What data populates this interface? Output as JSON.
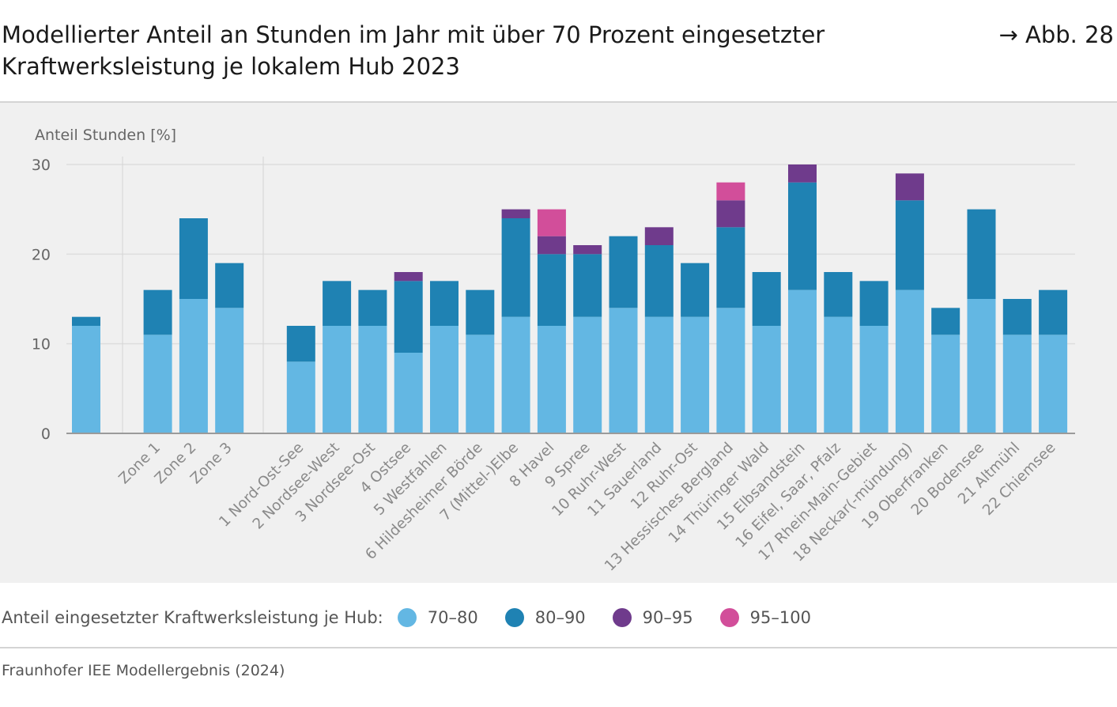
{
  "header": {
    "title": "Modellierter Anteil an Stunden im Jahr mit über 70 Prozent eingesetzter Kraftwerksleistung je lokalem Hub 2023",
    "figure_ref": "→ Abb. 28"
  },
  "legend": {
    "title": "Anteil eingesetzter Kraftwerksleistung je Hub:",
    "items": [
      {
        "label": "70–80",
        "color": "#63b7e3"
      },
      {
        "label": "80–90",
        "color": "#1f82b3"
      },
      {
        "label": "90–95",
        "color": "#6f3b8c"
      },
      {
        "label": "95–100",
        "color": "#d24e9a"
      }
    ]
  },
  "source": "Fraunhofer IEE Modellergebnis (2024)",
  "chart_data": {
    "type": "bar",
    "stacked": true,
    "title": "Modellierter Anteil an Stunden im Jahr mit über 70 Prozent eingesetzter Kraftwerksleistung je lokalem Hub 2023",
    "ylabel": "Anteil Stunden [%]",
    "xlabel": "",
    "ylim": [
      0,
      30
    ],
    "yticks": [
      0,
      10,
      20,
      30
    ],
    "grid": true,
    "categories": [
      "",
      "Zone 1",
      "Zone 2",
      "Zone 3",
      "1 Nord-Ost-See",
      "2 Nordsee-West",
      "3 Nordsee-Ost",
      "4 Ostsee",
      "5 Westfahlen",
      "6 Hildesheimer Börde",
      "7 (Mittel-)Elbe",
      "8 Havel",
      "9 Spree",
      "10 Ruhr-West",
      "11 Sauerland",
      "12 Ruhr-Ost",
      "13 Hessisches Bergland",
      "14 Thüringer Wald",
      "15 Elbsandstein",
      "16 Eifel, Saar, Pfalz",
      "17 Rhein-Main-Gebiet",
      "18 Neckar(-mündung)",
      "19 Oberfranken",
      "20 Bodensee",
      "21 Altmühl",
      "22 Chiemsee"
    ],
    "groups": [
      [
        0
      ],
      [
        1,
        2,
        3
      ],
      [
        4,
        5,
        6,
        7,
        8,
        9,
        10,
        11,
        12,
        13,
        14,
        15,
        16,
        17,
        18,
        19,
        20,
        21,
        22,
        23,
        24,
        25
      ]
    ],
    "series": [
      {
        "name": "70–80",
        "color": "#63b7e3",
        "values": [
          12,
          11,
          15,
          14,
          8,
          12,
          12,
          9,
          12,
          11,
          13,
          12,
          13,
          14,
          13,
          13,
          14,
          12,
          16,
          13,
          12,
          16,
          11,
          15,
          11,
          11
        ]
      },
      {
        "name": "80–90",
        "color": "#1f82b3",
        "values": [
          1,
          5,
          9,
          5,
          4,
          5,
          4,
          8,
          5,
          5,
          11,
          8,
          7,
          8,
          8,
          6,
          9,
          6,
          12,
          5,
          5,
          10,
          3,
          10,
          4,
          5
        ]
      },
      {
        "name": "90–95",
        "color": "#6f3b8c",
        "values": [
          0,
          0,
          0,
          0,
          0,
          0,
          0,
          1,
          0,
          0,
          1,
          2,
          1,
          0,
          2,
          0,
          3,
          0,
          2,
          0,
          0,
          3,
          0,
          0,
          0,
          0
        ]
      },
      {
        "name": "95–100",
        "color": "#d24e9a",
        "values": [
          0,
          0,
          0,
          0,
          0,
          0,
          0,
          0,
          0,
          0,
          0,
          3,
          0,
          0,
          0,
          0,
          2,
          0,
          0,
          0,
          0,
          0,
          0,
          0,
          0,
          0
        ]
      }
    ]
  }
}
